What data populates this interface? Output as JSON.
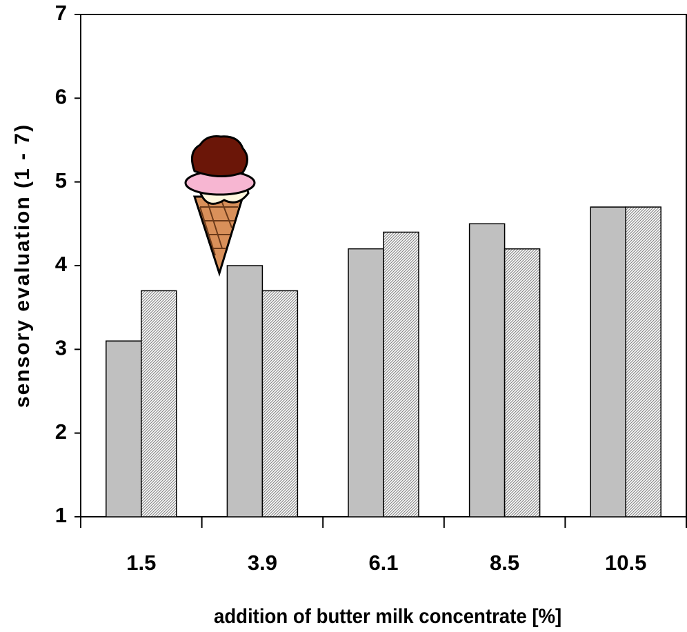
{
  "chart_data": {
    "type": "bar",
    "xlabel": "addition of butter milk concentrate [%]",
    "ylabel": "sensory evaluation (1 - 7)",
    "categories": [
      "1.5",
      "3.9",
      "6.1",
      "8.5",
      "10.5"
    ],
    "series": [
      {
        "color": "#9a9a9a",
        "values": [
          3.1,
          4.0,
          4.2,
          4.5,
          4.7
        ]
      },
      {
        "color": "#8a8a8a",
        "values": [
          3.7,
          3.7,
          4.4,
          4.2,
          4.7
        ]
      }
    ],
    "ylim": [
      1,
      7
    ],
    "yticks": [
      1,
      2,
      3,
      4,
      5,
      6,
      7
    ]
  }
}
